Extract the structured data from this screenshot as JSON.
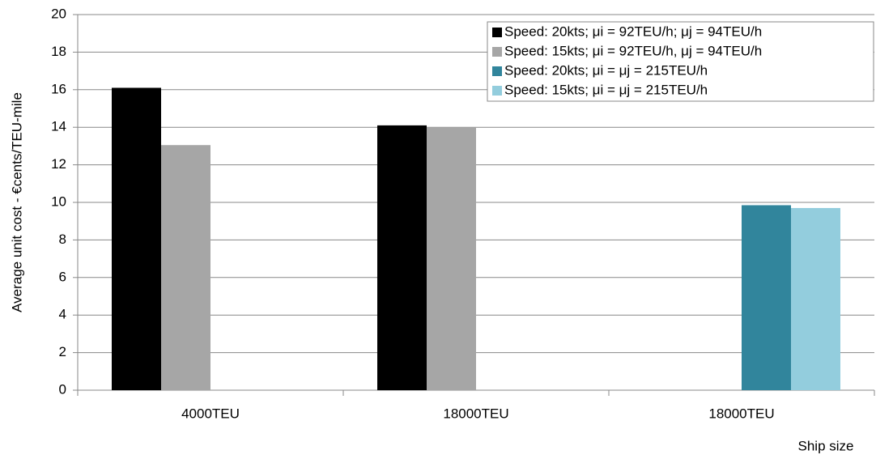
{
  "chart_data": {
    "type": "bar",
    "x_label": "Ship size",
    "y_label": "Average unit cost - €cents/TEU-mile",
    "categories": [
      "4000TEU",
      "18000TEU",
      "18000TEU"
    ],
    "series": [
      {
        "name": "Speed: 20kts; μi = 92TEU/h; μj = 94TEU/h",
        "color": "#000000",
        "values": [
          16.1,
          14.1,
          null
        ]
      },
      {
        "name": "Speed: 15kts; μi = 92TEU/h, μj = 94TEU/h",
        "color": "#a6a6a6",
        "values": [
          13.05,
          14.0,
          null
        ]
      },
      {
        "name": "Speed: 20kts; μi = μj = 215TEU/h",
        "color": "#31859c",
        "values": [
          null,
          null,
          9.85
        ]
      },
      {
        "name": "Speed: 15kts; μi = μj = 215TEU/h",
        "color": "#93cddd",
        "values": [
          null,
          null,
          9.7
        ]
      }
    ],
    "ylim": [
      0,
      20
    ],
    "yticks": [
      0,
      2,
      4,
      6,
      8,
      10,
      12,
      14,
      16,
      18,
      20
    ],
    "grid": true,
    "legend": "top-right"
  }
}
